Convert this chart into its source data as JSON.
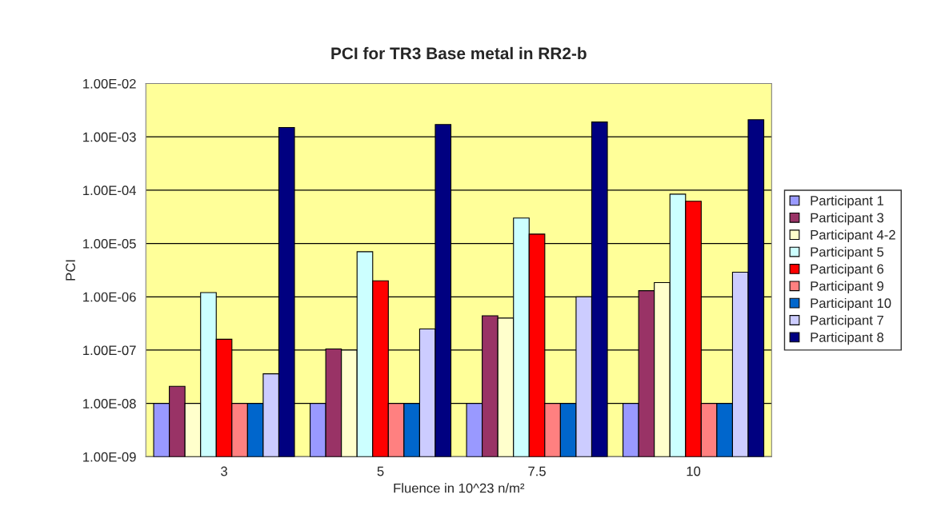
{
  "chart_data": {
    "type": "bar",
    "title": "PCI for TR3 Base metal in RR2-b",
    "xlabel": "Fluence in 10^23 n/m²",
    "ylabel": "PCI",
    "categories": [
      "3",
      "5",
      "7.5",
      "10"
    ],
    "series": [
      {
        "name": "Participant 1",
        "color": "#9999ff",
        "values": [
          1e-08,
          1e-08,
          1e-08,
          1e-08
        ]
      },
      {
        "name": "Participant 3",
        "color": "#993366",
        "values": [
          2.1e-08,
          1.05e-07,
          4.4e-07,
          1.3e-06
        ]
      },
      {
        "name": "Participant 4-2",
        "color": "#ffffcc",
        "values": [
          1e-08,
          1e-07,
          4e-07,
          1.85e-06
        ]
      },
      {
        "name": "Participant 5",
        "color": "#ccffff",
        "values": [
          1.2e-06,
          7e-06,
          3e-05,
          8.4e-05
        ]
      },
      {
        "name": "Participant 6",
        "color": "#ff0000",
        "values": [
          1.6e-07,
          2e-06,
          1.5e-05,
          6.2e-05
        ]
      },
      {
        "name": "Participant 9",
        "color": "#ff8080",
        "values": [
          1e-08,
          1e-08,
          1e-08,
          1e-08
        ]
      },
      {
        "name": "Participant 10",
        "color": "#0066cc",
        "values": [
          1e-08,
          1e-08,
          1e-08,
          1e-08
        ]
      },
      {
        "name": "Participant 7",
        "color": "#ccccff",
        "values": [
          3.6e-08,
          2.5e-07,
          1e-06,
          2.9e-06
        ]
      },
      {
        "name": "Participant 8",
        "color": "#000080",
        "values": [
          0.0015,
          0.0017,
          0.0019,
          0.0021
        ]
      }
    ],
    "log": "y",
    "ylim": [
      1e-09,
      0.01
    ],
    "yticks": [
      {
        "value": 1e-09,
        "label": "1.00E-09"
      },
      {
        "value": 1e-08,
        "label": "1.00E-08"
      },
      {
        "value": 1e-07,
        "label": "1.00E-07"
      },
      {
        "value": 1e-06,
        "label": "1.00E-06"
      },
      {
        "value": 1e-05,
        "label": "1.00E-05"
      },
      {
        "value": 0.0001,
        "label": "1.00E-04"
      },
      {
        "value": 0.001,
        "label": "1.00E-03"
      },
      {
        "value": 0.01,
        "label": "1.00E-02"
      }
    ],
    "grid": "y",
    "legend": "right"
  }
}
